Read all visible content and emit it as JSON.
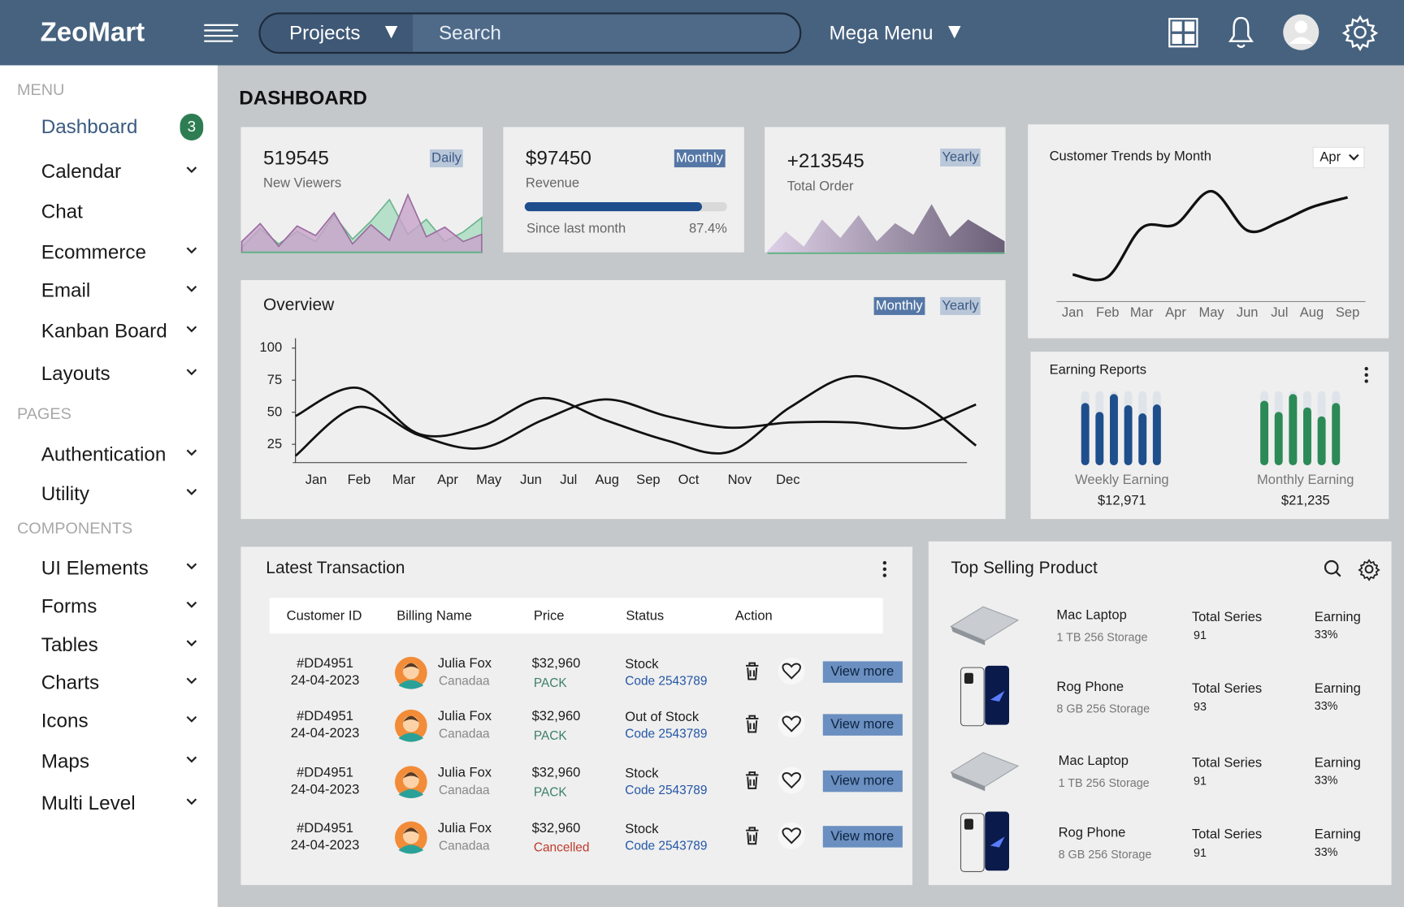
{
  "header": {
    "brand": "ZeoMart",
    "projects": "Projects",
    "search": "Search",
    "mega_menu": "Mega Menu"
  },
  "sidebar": {
    "sections": [
      {
        "title": "MENU",
        "items": [
          {
            "label": "Dashboard",
            "badge": 3,
            "active": true
          },
          {
            "label": "Calendar",
            "expandable": true
          },
          {
            "label": "Chat"
          },
          {
            "label": "Ecommerce",
            "expandable": true
          },
          {
            "label": "Email",
            "expandable": true
          },
          {
            "label": "Kanban Board",
            "expandable": true
          },
          {
            "label": "Layouts",
            "expandable": true
          }
        ]
      },
      {
        "title": "PAGES",
        "items": [
          {
            "label": "Authentication",
            "expandable": true
          },
          {
            "label": "Utility",
            "expandable": true
          }
        ]
      },
      {
        "title": "COMPONENTS",
        "items": [
          {
            "label": "UI Elements",
            "expandable": true
          },
          {
            "label": "Forms",
            "expandable": true
          },
          {
            "label": "Tables",
            "expandable": true
          },
          {
            "label": "Charts",
            "expandable": true
          },
          {
            "label": "Icons",
            "expandable": true
          },
          {
            "label": "Maps",
            "expandable": true
          },
          {
            "label": "Multi Level",
            "expandable": true
          }
        ]
      }
    ]
  },
  "page_title": "DASHBOARD",
  "stats": [
    {
      "value": 519545,
      "label": "New Viewers",
      "period": "Daily",
      "series": [
        {
          "color": "#a9dcc1",
          "stroke": "#6db48e",
          "values": [
            8,
            40,
            14,
            35,
            18,
            62,
            22,
            52,
            88,
            30,
            55,
            18,
            34,
            58
          ]
        },
        {
          "color": "#c8a2cb",
          "stroke": "#9a6b9f",
          "values": [
            18,
            48,
            10,
            44,
            28,
            66,
            14,
            46,
            20,
            96,
            26,
            42,
            18,
            30
          ]
        }
      ]
    },
    {
      "value": "$97450",
      "label": "Revenue",
      "period": "Monthly",
      "active": true,
      "progress": {
        "value": 87.4,
        "label": "87.4%"
      },
      "progress_caption": "Since last month"
    },
    {
      "value": "+213545",
      "label": "Total Order",
      "period": "Yearly",
      "series": [
        {
          "colors": [
            "#ddd0e6",
            "#6a5f77"
          ],
          "values": [
            4,
            40,
            12,
            62,
            28,
            70,
            22,
            55,
            34,
            90,
            30,
            62,
            42,
            22
          ]
        }
      ]
    }
  ],
  "trends": {
    "title": "Customer Trends by Month",
    "selected": "Apr",
    "categories": [
      "Jan",
      "Feb",
      "Mar",
      "Apr",
      "May",
      "Jun",
      "Jul",
      "Aug",
      "Sep"
    ],
    "values": [
      22,
      20,
      60,
      63,
      90,
      58,
      65,
      77,
      85
    ],
    "ylim": [
      0,
      100
    ],
    "color": "#111111"
  },
  "overview": {
    "title": "Overview",
    "tabs": [
      "Monthly",
      "Yearly"
    ],
    "active_tab": "Monthly",
    "categories": [
      "Jan",
      "Feb",
      "Mar",
      "Apr",
      "May",
      "Jun",
      "Jul",
      "Aug",
      "Sep",
      "Oct",
      "Nov",
      "Dec"
    ],
    "ylim": [
      10,
      100
    ],
    "yticks": [
      25,
      50,
      75,
      100
    ],
    "series": [
      {
        "color": "#111111",
        "values": [
          47,
          69,
          33,
          39,
          61,
          44,
          28,
          19,
          54,
          78,
          61,
          24
        ]
      },
      {
        "color": "#111111",
        "values": [
          16,
          54,
          32,
          22,
          44,
          60,
          47,
          38,
          42,
          42,
          38,
          56
        ]
      }
    ]
  },
  "earning": {
    "title": "Earning Reports",
    "ylim": [
      0,
      100
    ],
    "groups": [
      {
        "label": "Weekly Earning",
        "amount": "$12,971",
        "color": "#1f4e8c",
        "values": [
          84,
          72,
          96,
          81,
          70,
          82
        ]
      },
      {
        "label": "Monthly Earning",
        "amount": "$21,235",
        "color": "#2c8a57",
        "values": [
          87,
          72,
          96,
          78,
          66,
          84
        ]
      }
    ]
  },
  "transactions": {
    "title": "Latest Transaction",
    "columns": [
      "Customer ID",
      "Billing Name",
      "Price",
      "Status",
      "Action"
    ],
    "rows": [
      {
        "id": "#DD4951",
        "date": "24-04-2023",
        "name": "Julia Fox",
        "country": "Canadaa",
        "price": "$32,960",
        "note": "PACK",
        "status": "Stock",
        "code": "Code 2543789",
        "action": "View more"
      },
      {
        "id": "#DD4951",
        "date": "24-04-2023",
        "name": "Julia Fox",
        "country": "Canadaa",
        "price": "$32,960",
        "note": "PACK",
        "status": "Out of Stock",
        "code": "Code 2543789",
        "action": "View more"
      },
      {
        "id": "#DD4951",
        "date": "24-04-2023",
        "name": "Julia Fox",
        "country": "Canadaa",
        "price": "$32,960",
        "note": "PACK",
        "status": "Stock",
        "code": "Code 2543789",
        "action": "View more"
      },
      {
        "id": "#DD4951",
        "date": "24-04-2023",
        "name": "Julia Fox",
        "country": "Canadaa",
        "price": "$32,960",
        "note": "Cancelled",
        "note_color": "#c0392b",
        "status": "Stock",
        "code": "Code 2543789",
        "action": "View more"
      }
    ]
  },
  "products": {
    "title": "Top Selling Product",
    "items": [
      {
        "name": "Mac Laptop",
        "spec": "1 TB 256 Storage",
        "series_label": "Total Series",
        "series": 91,
        "earning_label": "Earning",
        "earning": "33%"
      },
      {
        "name": "Rog Phone",
        "spec": "8 GB 256 Storage",
        "series_label": "Total Series",
        "series": 93,
        "earning_label": "Earning",
        "earning": "33%"
      },
      {
        "name": "Mac Laptop",
        "spec": "1 TB 256 Storage",
        "series_label": "Total Series",
        "series": 91,
        "earning_label": "Earning",
        "earning": "33%"
      },
      {
        "name": "Rog Phone",
        "spec": "8 GB 256 Storage",
        "series_label": "Total Series",
        "series": 91,
        "earning_label": "Earning",
        "earning": "33%"
      }
    ]
  }
}
